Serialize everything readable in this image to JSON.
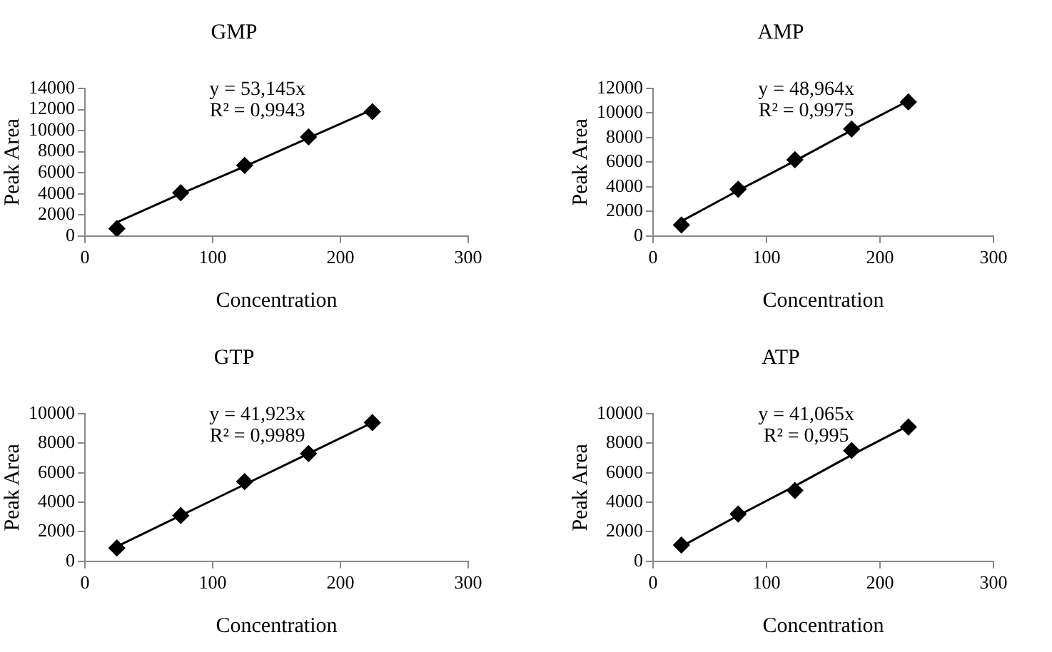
{
  "chart_data": [
    {
      "type": "scatter",
      "title": "GMP",
      "xlabel": "Concentration",
      "ylabel": "Peak Area",
      "x": [
        25,
        75,
        125,
        175,
        225
      ],
      "xlim": [
        0,
        300
      ],
      "xticks": [
        0,
        100,
        200,
        300
      ],
      "ylim": [
        0,
        14000
      ],
      "yticks": [
        0,
        2000,
        4000,
        6000,
        8000,
        10000,
        12000,
        14000
      ],
      "grid": false,
      "legend": false,
      "marker": "diamond",
      "annotations": [
        "y = 53,145x",
        "R² = 0,9943"
      ],
      "series": [
        {
          "color": "#000000",
          "values": [
            700,
            4100,
            6700,
            9400,
            11800
          ]
        },
        {
          "type": "line",
          "color": "#000000",
          "marker": "none",
          "values": [
            1300,
            4000,
            6600,
            9300,
            12000
          ]
        }
      ]
    },
    {
      "type": "scatter",
      "title": "AMP",
      "xlabel": "Concentration",
      "ylabel": "Peak Area",
      "x": [
        25,
        75,
        125,
        175,
        225
      ],
      "xlim": [
        0,
        300
      ],
      "xticks": [
        0,
        100,
        200,
        300
      ],
      "ylim": [
        0,
        12000
      ],
      "yticks": [
        0,
        2000,
        4000,
        6000,
        8000,
        10000,
        12000
      ],
      "grid": false,
      "legend": false,
      "marker": "diamond",
      "annotations": [
        "y = 48,964x",
        "R² = 0,9975"
      ],
      "series": [
        {
          "color": "#000000",
          "values": [
            900,
            3800,
            6200,
            8700,
            10900
          ]
        },
        {
          "type": "line",
          "color": "#000000",
          "marker": "none",
          "values": [
            1200,
            3700,
            6100,
            8600,
            11000
          ]
        }
      ]
    },
    {
      "type": "scatter",
      "title": "GTP",
      "xlabel": "Concentration",
      "ylabel": "Peak Area",
      "x": [
        25,
        75,
        125,
        175,
        225
      ],
      "xlim": [
        0,
        300
      ],
      "xticks": [
        0,
        100,
        200,
        300
      ],
      "ylim": [
        0,
        10000
      ],
      "yticks": [
        0,
        2000,
        4000,
        6000,
        8000,
        10000
      ],
      "grid": false,
      "legend": false,
      "marker": "diamond",
      "annotations": [
        "y = 41,923x",
        "R² = 0,9989"
      ],
      "series": [
        {
          "color": "#000000",
          "values": [
            900,
            3100,
            5400,
            7300,
            9400
          ]
        },
        {
          "type": "line",
          "color": "#000000",
          "marker": "none",
          "values": [
            1000,
            3100,
            5200,
            7300,
            9400
          ]
        }
      ]
    },
    {
      "type": "scatter",
      "title": "ATP",
      "xlabel": "Concentration",
      "ylabel": "Peak Area",
      "x": [
        25,
        75,
        125,
        175,
        225
      ],
      "xlim": [
        0,
        300
      ],
      "xticks": [
        0,
        100,
        200,
        300
      ],
      "ylim": [
        0,
        10000
      ],
      "yticks": [
        0,
        2000,
        4000,
        6000,
        8000,
        10000
      ],
      "grid": false,
      "legend": false,
      "marker": "diamond",
      "annotations": [
        "y = 41,065x",
        "R² = 0,995"
      ],
      "series": [
        {
          "color": "#000000",
          "values": [
            1100,
            3200,
            4800,
            7500,
            9100
          ]
        },
        {
          "type": "line",
          "color": "#000000",
          "marker": "none",
          "values": [
            1000,
            3100,
            5100,
            7200,
            9200
          ]
        }
      ]
    }
  ]
}
